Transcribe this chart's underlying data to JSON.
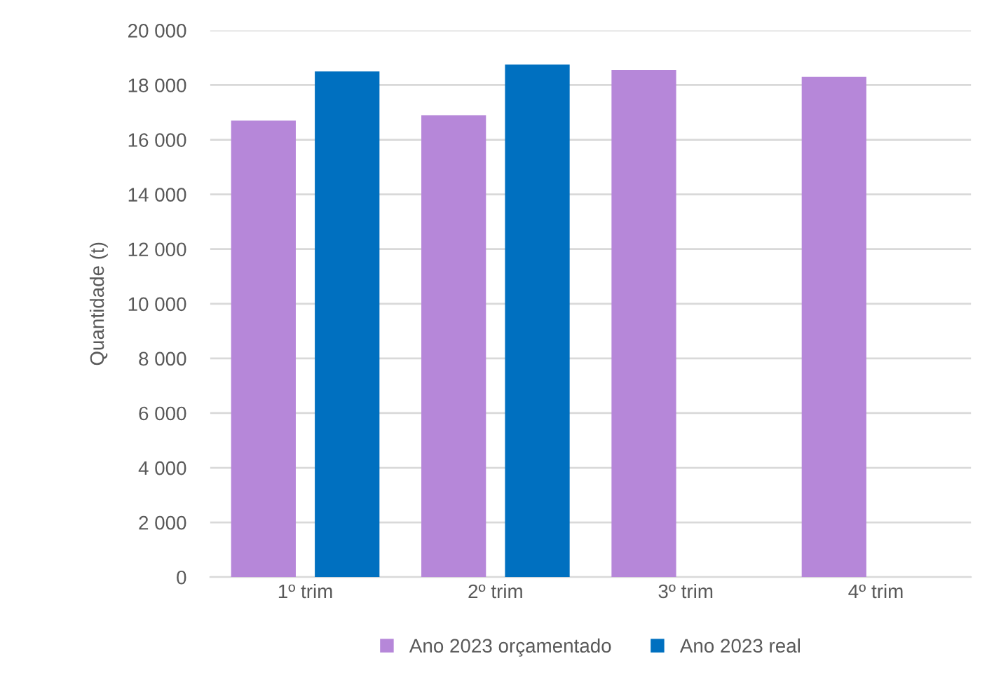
{
  "chart_data": {
    "type": "bar",
    "ylabel": "Quantidade (t)",
    "categories": [
      "1º trim",
      "2º trim",
      "3º trim",
      "4º trim"
    ],
    "series": [
      {
        "name": "Ano 2023 orçamentado",
        "color": "#b687d9",
        "values": [
          16700,
          16900,
          18550,
          18300
        ]
      },
      {
        "name": "Ano 2023 real",
        "color": "#0070c0",
        "values": [
          18500,
          18750,
          null,
          null
        ]
      }
    ],
    "ylim": [
      0,
      20000
    ],
    "yticks": [
      0,
      {
        "value": 2000,
        "label": "2 000"
      },
      {
        "value": 4000,
        "label": "4 000"
      },
      {
        "value": 6000,
        "label": "6 000"
      },
      {
        "value": 8000,
        "label": "8 000"
      },
      {
        "value": 10000,
        "label": "10 000"
      },
      {
        "value": 12000,
        "label": "12 000"
      },
      {
        "value": 14000,
        "label": "14 000"
      },
      {
        "value": 16000,
        "label": "16 000"
      },
      {
        "value": 18000,
        "label": "18 000"
      },
      {
        "value": 20000,
        "label": "20 000"
      }
    ],
    "grid": "y",
    "legend": "bottom"
  }
}
